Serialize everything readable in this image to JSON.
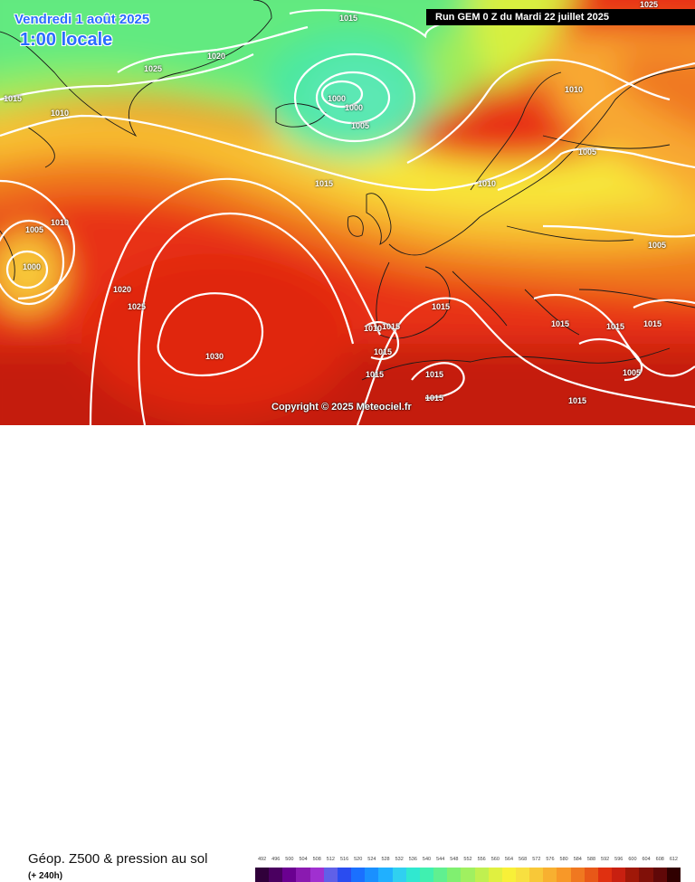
{
  "header": {
    "date": "Vendredi 1 août 2025",
    "local_time": "1:00 locale",
    "run": "Run GEM 0 Z du Mardi 22 juillet 2025"
  },
  "copyright": "Copyright © 2025 Meteociel.fr",
  "footer": {
    "title": "Géop. Z500 & pression au sol",
    "forecast_step": "(+ 240h)"
  },
  "legend": {
    "values": [
      "492",
      "496",
      "500",
      "504",
      "508",
      "512",
      "516",
      "520",
      "524",
      "528",
      "532",
      "536",
      "540",
      "544",
      "548",
      "552",
      "556",
      "560",
      "564",
      "568",
      "572",
      "576",
      "580",
      "584",
      "588",
      "592",
      "596",
      "600",
      "604",
      "608",
      "612"
    ],
    "colors": [
      "#30003a",
      "#4a0060",
      "#6a0090",
      "#8a1ab0",
      "#a030d0",
      "#6060e8",
      "#2a4cf0",
      "#1a70ff",
      "#1a90ff",
      "#20b0ff",
      "#30d0f0",
      "#30e8d0",
      "#40f0b0",
      "#60f090",
      "#80f070",
      "#a0f060",
      "#c0f050",
      "#e0f040",
      "#f8f038",
      "#f8e040",
      "#f8c838",
      "#f8b030",
      "#f89828",
      "#f07820",
      "#e85818",
      "#e03010",
      "#c82010",
      "#a01808",
      "#801008",
      "#600808",
      "#300000"
    ]
  },
  "isobars": [
    {
      "value": "1015",
      "placement": "top center"
    },
    {
      "value": "1025",
      "placement": "top right"
    },
    {
      "value": "1020",
      "placement": "Greenland"
    },
    {
      "value": "1025",
      "placement": "north-west Atlantic"
    },
    {
      "value": "1015",
      "placement": "west edge"
    },
    {
      "value": "1010",
      "placement": "Greenland coast"
    },
    {
      "value": "1000",
      "placement": "low near Iceland"
    },
    {
      "value": "1000",
      "placement": "low near Iceland"
    },
    {
      "value": "1005",
      "placement": "Iceland low"
    },
    {
      "value": "1010",
      "placement": "Scandinavia"
    },
    {
      "value": "1005",
      "placement": "Baltic"
    },
    {
      "value": "1015",
      "placement": "mid Atlantic"
    },
    {
      "value": "1010",
      "placement": "North Sea"
    },
    {
      "value": "1010",
      "placement": "west Atlantic"
    },
    {
      "value": "1005",
      "placement": "west Atlantic low"
    },
    {
      "value": "1000",
      "placement": "west Atlantic low"
    },
    {
      "value": "1005",
      "placement": "Russia"
    },
    {
      "value": "1020",
      "placement": "Azores high"
    },
    {
      "value": "1025",
      "placement": "Azores high"
    },
    {
      "value": "1030",
      "placement": "Azores high center"
    },
    {
      "value": "1015",
      "placement": "Italy"
    },
    {
      "value": "1010",
      "placement": "Spain"
    },
    {
      "value": "1015",
      "placement": "Spain"
    },
    {
      "value": "1015",
      "placement": "Spain south"
    },
    {
      "value": "1015",
      "placement": "Morocco"
    },
    {
      "value": "1015",
      "placement": "Algeria"
    },
    {
      "value": "1015",
      "placement": "Sahara"
    },
    {
      "value": "1015",
      "placement": "Balkans"
    },
    {
      "value": "1015",
      "placement": "Greece"
    },
    {
      "value": "1015",
      "placement": "Turkey"
    },
    {
      "value": "1005",
      "placement": "Cyprus"
    },
    {
      "value": "1015",
      "placement": "Libya"
    }
  ]
}
